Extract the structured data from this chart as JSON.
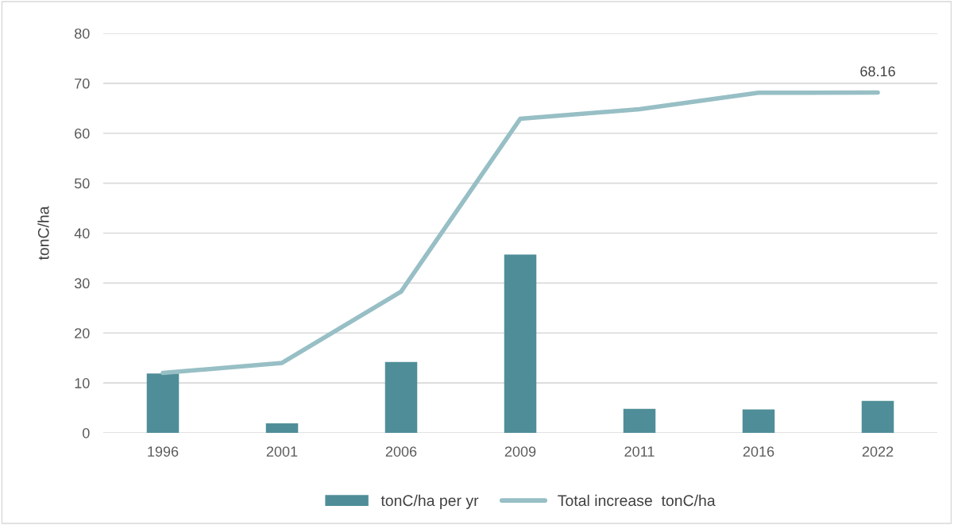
{
  "chart_data": {
    "type": "bar",
    "ylabel": "tonC/ha",
    "categories": [
      "1996",
      "2001",
      "2006",
      "2009",
      "2011",
      "2016",
      "2022"
    ],
    "series": [
      {
        "name": "tonC/ha per yr",
        "color": "#4f8e98",
        "values": [
          11.9,
          1.9,
          14.2,
          35.7,
          4.8,
          4.7,
          6.4
        ]
      },
      {
        "name": "Total increase  tonC/ha",
        "type": "line",
        "color": "#97bfc5",
        "values": [
          12.0,
          14.0,
          28.3,
          62.9,
          64.8,
          68.1,
          68.16
        ],
        "value_labels": [
          null,
          null,
          null,
          null,
          null,
          null,
          "68.16"
        ]
      }
    ],
    "ylim": [
      0,
      80
    ],
    "yticks": [
      0,
      10,
      20,
      30,
      40,
      50,
      60,
      70,
      80
    ],
    "grid": "y",
    "legend": "bottom",
    "marker": "none",
    "line_style": "solid"
  }
}
